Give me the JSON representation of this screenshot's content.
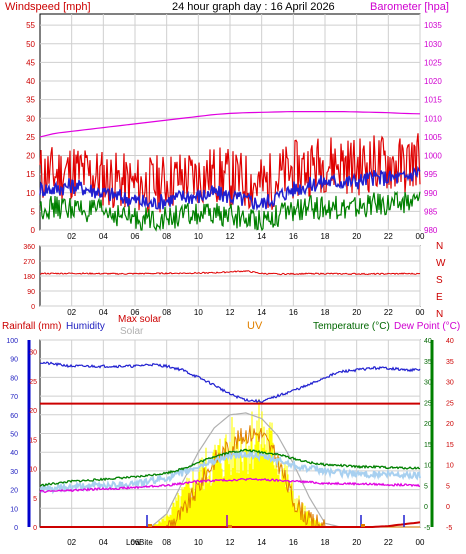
{
  "chart_data": [
    {
      "type": "line",
      "title": "24 hour graph day : 16 April 2026",
      "ylabel_left": "Windspeed [mph]",
      "ylabel_right": "Barometer [hpa]",
      "x_ticks": [
        "02",
        "04",
        "06",
        "08",
        "10",
        "12",
        "14",
        "16",
        "18",
        "20",
        "22",
        "00"
      ],
      "y_left_ticks": [
        0,
        5,
        10,
        15,
        20,
        25,
        30,
        35,
        40,
        45,
        50,
        55
      ],
      "y_right_ticks": [
        980,
        985,
        990,
        995,
        1000,
        1005,
        1010,
        1015,
        1020,
        1025,
        1030,
        1035
      ],
      "ylim_left": [
        0,
        58
      ],
      "ylim_right": [
        980,
        1038
      ],
      "grid": true,
      "hours": [
        0,
        1,
        2,
        3,
        4,
        5,
        6,
        7,
        8,
        9,
        10,
        11,
        12,
        13,
        14,
        15,
        16,
        17,
        18,
        19,
        20,
        21,
        22,
        23,
        24
      ],
      "series": [
        {
          "color": "#e00000",
          "values": [
            15,
            15,
            16,
            15,
            14,
            13,
            12,
            12,
            13,
            14,
            14,
            15,
            14,
            13,
            12,
            14,
            16,
            17,
            18,
            18,
            17,
            18,
            18,
            17,
            20
          ]
        },
        {
          "color": "#2020d0",
          "values": [
            11,
            11,
            12,
            11,
            10,
            9,
            8,
            7,
            8,
            9,
            9,
            10,
            9,
            8,
            7,
            9,
            11,
            12,
            13,
            13,
            13,
            14,
            14,
            14,
            16
          ]
        },
        {
          "color": "#008000",
          "values": [
            6,
            6,
            6,
            5,
            5,
            4,
            3,
            3,
            3,
            4,
            4,
            4,
            4,
            3,
            3,
            4,
            5,
            6,
            6,
            6,
            6,
            7,
            7,
            7,
            8
          ]
        },
        {
          "color": "#e000e0",
          "axis": "right",
          "values": [
            1005,
            1006,
            1006.5,
            1007,
            1007.5,
            1008,
            1008.5,
            1009,
            1009.5,
            1010,
            1010.5,
            1011,
            1011.3,
            1011.5,
            1011.6,
            1011.7,
            1011.8,
            1011.8,
            1011.8,
            1011.8,
            1011.7,
            1011.6,
            1011.5,
            1011.3,
            1011.2
          ]
        }
      ]
    },
    {
      "type": "line",
      "x_ticks": [
        "02",
        "04",
        "06",
        "08",
        "10",
        "12",
        "14",
        "16",
        "18",
        "20",
        "22",
        "00"
      ],
      "y_ticks": [
        0,
        90,
        180,
        270,
        360
      ],
      "right_labels": [
        "N",
        "W",
        "S",
        "E",
        "N"
      ],
      "ylim": [
        0,
        360
      ],
      "grid": true,
      "hours": [
        0,
        1,
        2,
        3,
        4,
        5,
        6,
        7,
        8,
        9,
        10,
        11,
        12,
        13,
        14,
        15,
        16,
        17,
        18,
        19,
        20,
        21,
        22,
        23,
        24
      ],
      "series": [
        {
          "color": "#e00000",
          "values": [
            195,
            195,
            196,
            195,
            194,
            193,
            194,
            195,
            196,
            197,
            198,
            199,
            205,
            210,
            195,
            192,
            193,
            194,
            194,
            193,
            193,
            192,
            193,
            194,
            193
          ]
        }
      ]
    },
    {
      "type": "line",
      "labels": {
        "rainfall": "Rainfall (mm)",
        "humidity": "Humidity",
        "max_solar": "Max solar",
        "solar": "Solar",
        "uv": "UV",
        "temperature": "Temperature (°C)",
        "dewpoint": "Dew Point (°C)"
      },
      "x_ticks": [
        "02",
        "04",
        "06",
        "08",
        "10",
        "12",
        "14",
        "16",
        "18",
        "20",
        "22",
        "00"
      ],
      "event_labels": [
        "Low",
        "Bite"
      ],
      "y_rain_ticks": [
        0,
        10,
        20,
        30,
        40,
        50,
        60,
        70,
        80,
        90,
        100
      ],
      "y_hum_ticks": [
        0,
        5,
        10,
        15,
        20,
        25,
        30
      ],
      "y_temp_ticks": [
        -5,
        0,
        5,
        10,
        15,
        20,
        25,
        30,
        35,
        40
      ],
      "y_dew_ticks": [
        -5,
        0,
        5,
        10,
        15,
        20,
        25,
        30,
        35,
        40
      ],
      "grid": true,
      "hours": [
        0,
        1,
        2,
        3,
        4,
        5,
        6,
        7,
        8,
        9,
        10,
        11,
        12,
        13,
        14,
        15,
        16,
        17,
        18,
        19,
        20,
        21,
        22,
        23,
        24
      ],
      "humidity": [
        88,
        87,
        86,
        86,
        86,
        86,
        86,
        87,
        86,
        84,
        80,
        76,
        71,
        68,
        67,
        70,
        73,
        76,
        80,
        83,
        84,
        85,
        85,
        84,
        84
      ],
      "rain": [
        0,
        0,
        0,
        0,
        0,
        0,
        0,
        0,
        0,
        0,
        0,
        0,
        0,
        0,
        0,
        0,
        0,
        0,
        0,
        0,
        0,
        0,
        0.5,
        1.5,
        2.5
      ],
      "temperature": [
        5,
        5.5,
        6,
        6.2,
        6.5,
        6.8,
        7,
        7.5,
        8,
        9,
        10.5,
        12,
        13,
        13.5,
        13,
        12.5,
        11.5,
        10.5,
        10,
        9.8,
        9.5,
        9.5,
        9.3,
        9.2,
        9.2
      ],
      "dewpoint": [
        3.5,
        3.7,
        3.8,
        4,
        4.2,
        4.3,
        4.5,
        4.8,
        5,
        5.5,
        6,
        6.2,
        6.3,
        6.5,
        6.4,
        6.2,
        6,
        5.8,
        5.5,
        5.5,
        5.4,
        5.3,
        5.2,
        5.1,
        5
      ],
      "feels_like": [
        4,
        4.2,
        4.5,
        4.8,
        5,
        5.2,
        5.5,
        6,
        6.8,
        8,
        9.5,
        11,
        12,
        12.5,
        12,
        11,
        10,
        9,
        8.5,
        8,
        7.8,
        7.7,
        7.6,
        7.5,
        7.4
      ],
      "max_solar": [
        0,
        0,
        0,
        0,
        0,
        0,
        0,
        0,
        7,
        24,
        40,
        53,
        60,
        61,
        58,
        49,
        34,
        16,
        2,
        0,
        0,
        0,
        0,
        0,
        0
      ],
      "solar": [
        0,
        0,
        0,
        0,
        0,
        0,
        0,
        0,
        5,
        15,
        25,
        32,
        38,
        42,
        46,
        35,
        15,
        5,
        0,
        0,
        0,
        0,
        0,
        0,
        0
      ],
      "uv": [
        0,
        0,
        0,
        0,
        0,
        0,
        0,
        0,
        0,
        1,
        3,
        5,
        6,
        7,
        7,
        5,
        2,
        0.5,
        0,
        0,
        0,
        0,
        0,
        0,
        0
      ],
      "series": [
        {
          "name": "Humidity",
          "color": "#2020d0"
        },
        {
          "name": "Max solar",
          "color": "#b0b0b0"
        },
        {
          "name": "Solar",
          "color": "#ffff00"
        },
        {
          "name": "UV",
          "color": "#e08000"
        },
        {
          "name": "Temperature (°C)",
          "color": "#008000"
        },
        {
          "name": "Dew Point (°C)",
          "color": "#e000e0"
        }
      ]
    }
  ]
}
